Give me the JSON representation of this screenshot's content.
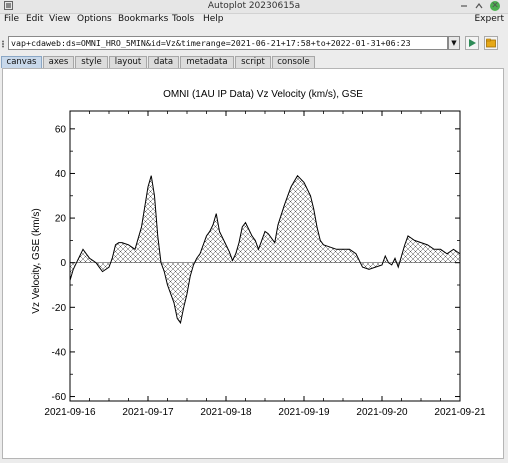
{
  "window": {
    "title": "Autoplot 20230615a",
    "close_glyph": "✕"
  },
  "menu": {
    "items": [
      "File",
      "Edit",
      "View",
      "Options",
      "Bookmarks",
      "Tools",
      "Help"
    ],
    "right": "Expert"
  },
  "address": {
    "value": "vap+cdaweb:ds=OMNI_HRO_5MIN&id=Vz&timerange=2021-06-21+17:58+to+2022-01-31+06:23"
  },
  "tabs": [
    "canvas",
    "axes",
    "style",
    "layout",
    "data",
    "metadata",
    "script",
    "console"
  ],
  "active_tab": "canvas",
  "colors": {
    "accent_tab": "#c8d8ea",
    "go_button": "#2e8b57",
    "bookmark_button": "#e6a817",
    "close_button": "#4caf50"
  },
  "chart_data": {
    "type": "area",
    "title": "OMNI (1AU IP Data)  Vz Velocity (km/s), GSE",
    "ylabel": "Vz Velocity, GSE (km/s)",
    "xlabel": "",
    "xlim": [
      "2021-09-16",
      "2021-09-21"
    ],
    "ylim": [
      -62,
      68
    ],
    "yticks": [
      -60,
      -40,
      -20,
      0,
      20,
      40,
      60
    ],
    "xticks": [
      "2021-09-16",
      "2021-09-17",
      "2021-09-18",
      "2021-09-19",
      "2021-09-20",
      "2021-09-21"
    ],
    "fill": "crosshatch above and below zero",
    "grid": false,
    "series": [
      {
        "x": [
          "2021-09-16T00:00",
          "2021-09-16T01:00",
          "2021-09-16T02:00",
          "2021-09-16T03:00",
          "2021-09-16T04:00",
          "2021-09-16T05:00",
          "2021-09-16T06:00",
          "2021-09-16T07:00",
          "2021-09-16T08:00",
          "2021-09-16T09:00",
          "2021-09-16T10:00",
          "2021-09-16T12:00",
          "2021-09-16T13:00",
          "2021-09-16T14:00",
          "2021-09-16T15:00",
          "2021-09-16T16:00",
          "2021-09-16T18:00",
          "2021-09-16T20:00",
          "2021-09-16T22:00",
          "2021-09-17T00:00",
          "2021-09-17T01:00",
          "2021-09-17T02:00",
          "2021-09-17T03:00",
          "2021-09-17T04:00",
          "2021-09-17T05:00",
          "2021-09-17T06:00",
          "2021-09-17T07:00",
          "2021-09-17T08:00",
          "2021-09-17T09:00",
          "2021-09-17T10:00",
          "2021-09-17T11:00",
          "2021-09-17T12:00",
          "2021-09-17T13:00",
          "2021-09-17T14:00",
          "2021-09-17T15:00",
          "2021-09-17T16:00",
          "2021-09-17T17:00",
          "2021-09-17T18:00",
          "2021-09-17T19:00",
          "2021-09-17T20:00",
          "2021-09-17T21:00",
          "2021-09-17T22:00",
          "2021-09-18T00:00",
          "2021-09-18T01:00",
          "2021-09-18T02:00",
          "2021-09-18T03:00",
          "2021-09-18T04:00",
          "2021-09-18T05:00",
          "2021-09-18T06:00",
          "2021-09-18T07:00",
          "2021-09-18T08:00",
          "2021-09-18T09:00",
          "2021-09-18T10:00",
          "2021-09-18T12:00",
          "2021-09-18T13:00",
          "2021-09-18T14:00",
          "2021-09-18T15:00",
          "2021-09-18T16:00",
          "2021-09-18T18:00",
          "2021-09-18T20:00",
          "2021-09-18T22:00",
          "2021-09-19T00:00",
          "2021-09-19T02:00",
          "2021-09-19T03:00",
          "2021-09-19T04:00",
          "2021-09-19T05:00",
          "2021-09-19T06:00",
          "2021-09-19T08:00",
          "2021-09-19T10:00",
          "2021-09-19T12:00",
          "2021-09-19T14:00",
          "2021-09-19T16:00",
          "2021-09-19T18:00",
          "2021-09-19T20:00",
          "2021-09-19T22:00",
          "2021-09-20T00:00",
          "2021-09-20T01:00",
          "2021-09-20T02:00",
          "2021-09-20T03:00",
          "2021-09-20T04:00",
          "2021-09-20T05:00",
          "2021-09-20T06:00",
          "2021-09-20T07:00",
          "2021-09-20T08:00",
          "2021-09-20T09:00",
          "2021-09-20T10:00",
          "2021-09-20T12:00",
          "2021-09-20T14:00",
          "2021-09-20T16:00",
          "2021-09-20T18:00",
          "2021-09-20T20:00",
          "2021-09-20T22:00",
          "2021-09-21T00:00"
        ],
        "y": [
          -8,
          -3,
          0,
          3,
          6,
          4,
          2,
          1,
          0,
          -2,
          -4,
          -2,
          2,
          8,
          9,
          9,
          8,
          6,
          16,
          34,
          39,
          30,
          12,
          0,
          -4,
          -10,
          -14,
          -18,
          -25,
          -27,
          -20,
          -14,
          -6,
          -1,
          2,
          4,
          8,
          12,
          14,
          17,
          22,
          14,
          8,
          5,
          1,
          4,
          9,
          16,
          18,
          15,
          12,
          10,
          6,
          14,
          13,
          11,
          9,
          17,
          26,
          34,
          39,
          36,
          30,
          24,
          16,
          10,
          8,
          7,
          6,
          6,
          6,
          4,
          -2,
          -3,
          -2,
          -1,
          3,
          0,
          -1,
          2,
          -2,
          3,
          8,
          12,
          11,
          10,
          9,
          8,
          6,
          6,
          4,
          6,
          4
        ]
      }
    ]
  }
}
